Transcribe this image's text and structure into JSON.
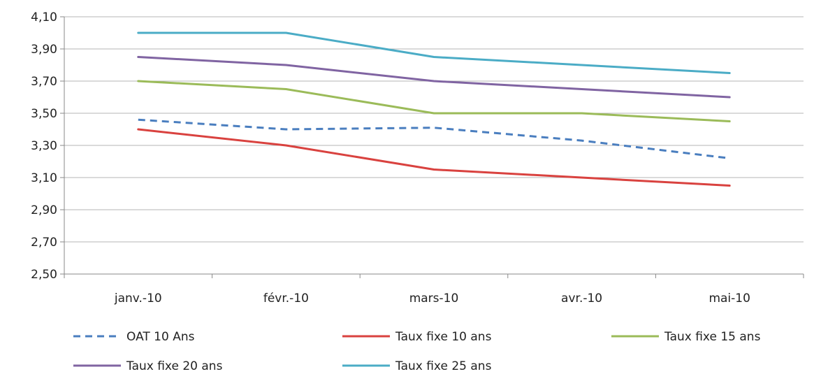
{
  "chart_data": {
    "type": "line",
    "title": "",
    "xlabel": "",
    "ylabel": "",
    "categories": [
      "janv.-10",
      "févr.-10",
      "mars-10",
      "avr.-10",
      "mai-10"
    ],
    "ylim": [
      2.5,
      4.1
    ],
    "yticks": [
      "2,50",
      "2,70",
      "2,90",
      "3,10",
      "3,30",
      "3,50",
      "3,70",
      "3,90",
      "4,10"
    ],
    "grid": true,
    "legend_position": "bottom",
    "series": [
      {
        "name": "OAT 10 Ans",
        "values": [
          3.46,
          3.4,
          3.41,
          3.33,
          3.22
        ],
        "color": "#4a7ebf",
        "dashed": true
      },
      {
        "name": "Taux fixe 10 ans",
        "values": [
          3.4,
          3.3,
          3.15,
          3.1,
          3.05
        ],
        "color": "#d9423f",
        "dashed": false
      },
      {
        "name": "Taux fixe 15 ans",
        "values": [
          3.7,
          3.65,
          3.5,
          3.5,
          3.45
        ],
        "color": "#9bbb59",
        "dashed": false
      },
      {
        "name": "Taux fixe 20 ans",
        "values": [
          3.85,
          3.8,
          3.7,
          3.65,
          3.6
        ],
        "color": "#8064a2",
        "dashed": false
      },
      {
        "name": "Taux fixe 25 ans",
        "values": [
          4.0,
          4.0,
          3.85,
          3.8,
          3.75
        ],
        "color": "#4bacc6",
        "dashed": false
      }
    ]
  }
}
